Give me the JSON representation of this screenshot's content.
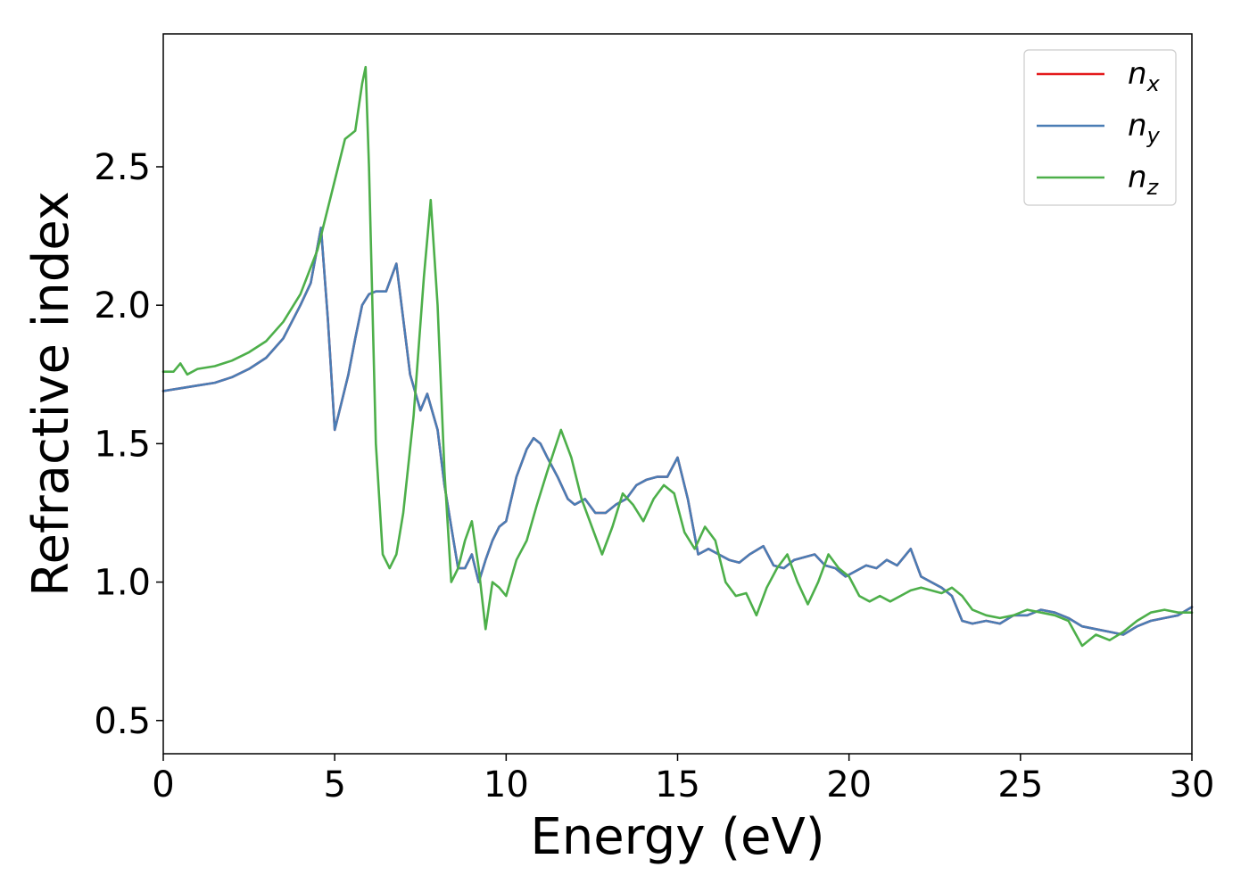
{
  "chart_data": {
    "type": "line",
    "xlabel": "Energy (eV)",
    "ylabel": "Refractive index",
    "xlim": [
      0,
      30
    ],
    "ylim": [
      0.38,
      2.98
    ],
    "xticks": [
      0,
      5,
      10,
      15,
      20,
      25,
      30
    ],
    "yticks": [
      0.5,
      1.0,
      1.5,
      2.0,
      2.5
    ],
    "xtick_labels": [
      "0",
      "5",
      "10",
      "15",
      "20",
      "25",
      "30"
    ],
    "ytick_labels": [
      "0.5",
      "1.0",
      "1.5",
      "2.0",
      "2.5"
    ],
    "grid": false,
    "legend_position": "top-right",
    "series": [
      {
        "name": "n",
        "sub": "x",
        "color": "#e41a1c",
        "x": [
          0,
          0.5,
          1,
          1.5,
          2,
          2.5,
          3,
          3.5,
          4,
          4.3,
          4.6,
          4.8,
          5,
          5.2,
          5.4,
          5.6,
          5.8,
          6,
          6.2,
          6.5,
          6.8,
          7,
          7.2,
          7.5,
          7.7,
          8,
          8.2,
          8.4,
          8.6,
          8.8,
          9,
          9.2,
          9.4,
          9.6,
          9.8,
          10,
          10.3,
          10.6,
          10.8,
          11,
          11.2,
          11.5,
          11.8,
          12,
          12.3,
          12.6,
          12.9,
          13.2,
          13.5,
          13.8,
          14.1,
          14.4,
          14.7,
          15,
          15.3,
          15.6,
          15.9,
          16.2,
          16.5,
          16.8,
          17.1,
          17.5,
          17.8,
          18.1,
          18.4,
          18.7,
          19,
          19.3,
          19.6,
          19.9,
          20.2,
          20.5,
          20.8,
          21.1,
          21.4,
          21.8,
          22.1,
          22.4,
          22.7,
          23,
          23.3,
          23.6,
          24,
          24.4,
          24.8,
          25.2,
          25.6,
          26,
          26.4,
          26.8,
          27.2,
          27.6,
          28,
          28.4,
          28.8,
          29.2,
          29.6,
          30
        ],
        "y": [
          1.69,
          1.7,
          1.71,
          1.72,
          1.74,
          1.77,
          1.81,
          1.88,
          2.0,
          2.08,
          2.28,
          1.95,
          1.55,
          1.65,
          1.75,
          1.88,
          2.0,
          2.04,
          2.05,
          2.05,
          2.15,
          1.95,
          1.75,
          1.62,
          1.68,
          1.55,
          1.35,
          1.2,
          1.05,
          1.05,
          1.1,
          1.0,
          1.08,
          1.15,
          1.2,
          1.22,
          1.38,
          1.48,
          1.52,
          1.5,
          1.45,
          1.38,
          1.3,
          1.28,
          1.3,
          1.25,
          1.25,
          1.28,
          1.3,
          1.35,
          1.37,
          1.38,
          1.38,
          1.45,
          1.3,
          1.1,
          1.12,
          1.1,
          1.08,
          1.07,
          1.1,
          1.13,
          1.06,
          1.05,
          1.08,
          1.09,
          1.1,
          1.06,
          1.05,
          1.02,
          1.04,
          1.06,
          1.05,
          1.08,
          1.06,
          1.12,
          1.02,
          1.0,
          0.98,
          0.95,
          0.86,
          0.85,
          0.86,
          0.85,
          0.88,
          0.88,
          0.9,
          0.89,
          0.87,
          0.84,
          0.83,
          0.82,
          0.81,
          0.84,
          0.86,
          0.87,
          0.88,
          0.91
        ]
      },
      {
        "name": "n",
        "sub": "y",
        "color": "#4a7db5",
        "x": [
          0,
          0.5,
          1,
          1.5,
          2,
          2.5,
          3,
          3.5,
          4,
          4.3,
          4.6,
          4.8,
          5,
          5.2,
          5.4,
          5.6,
          5.8,
          6,
          6.2,
          6.5,
          6.8,
          7,
          7.2,
          7.5,
          7.7,
          8,
          8.2,
          8.4,
          8.6,
          8.8,
          9,
          9.2,
          9.4,
          9.6,
          9.8,
          10,
          10.3,
          10.6,
          10.8,
          11,
          11.2,
          11.5,
          11.8,
          12,
          12.3,
          12.6,
          12.9,
          13.2,
          13.5,
          13.8,
          14.1,
          14.4,
          14.7,
          15,
          15.3,
          15.6,
          15.9,
          16.2,
          16.5,
          16.8,
          17.1,
          17.5,
          17.8,
          18.1,
          18.4,
          18.7,
          19,
          19.3,
          19.6,
          19.9,
          20.2,
          20.5,
          20.8,
          21.1,
          21.4,
          21.8,
          22.1,
          22.4,
          22.7,
          23,
          23.3,
          23.6,
          24,
          24.4,
          24.8,
          25.2,
          25.6,
          26,
          26.4,
          26.8,
          27.2,
          27.6,
          28,
          28.4,
          28.8,
          29.2,
          29.6,
          30
        ],
        "y": [
          1.69,
          1.7,
          1.71,
          1.72,
          1.74,
          1.77,
          1.81,
          1.88,
          2.0,
          2.08,
          2.28,
          1.95,
          1.55,
          1.65,
          1.75,
          1.88,
          2.0,
          2.04,
          2.05,
          2.05,
          2.15,
          1.95,
          1.75,
          1.62,
          1.68,
          1.55,
          1.35,
          1.2,
          1.05,
          1.05,
          1.1,
          1.0,
          1.08,
          1.15,
          1.2,
          1.22,
          1.38,
          1.48,
          1.52,
          1.5,
          1.45,
          1.38,
          1.3,
          1.28,
          1.3,
          1.25,
          1.25,
          1.28,
          1.3,
          1.35,
          1.37,
          1.38,
          1.38,
          1.45,
          1.3,
          1.1,
          1.12,
          1.1,
          1.08,
          1.07,
          1.1,
          1.13,
          1.06,
          1.05,
          1.08,
          1.09,
          1.1,
          1.06,
          1.05,
          1.02,
          1.04,
          1.06,
          1.05,
          1.08,
          1.06,
          1.12,
          1.02,
          1.0,
          0.98,
          0.95,
          0.86,
          0.85,
          0.86,
          0.85,
          0.88,
          0.88,
          0.9,
          0.89,
          0.87,
          0.84,
          0.83,
          0.82,
          0.81,
          0.84,
          0.86,
          0.87,
          0.88,
          0.91
        ]
      },
      {
        "name": "n",
        "sub": "z",
        "color": "#4daf4a",
        "x": [
          0,
          0.3,
          0.5,
          0.7,
          1,
          1.5,
          2,
          2.5,
          3,
          3.5,
          4,
          4.5,
          5,
          5.3,
          5.6,
          5.8,
          5.9,
          6,
          6.2,
          6.4,
          6.6,
          6.8,
          7,
          7.3,
          7.6,
          7.8,
          8,
          8.2,
          8.4,
          8.6,
          8.8,
          9,
          9.2,
          9.4,
          9.6,
          9.8,
          10,
          10.3,
          10.6,
          10.9,
          11.2,
          11.6,
          11.9,
          12.2,
          12.5,
          12.8,
          13.1,
          13.4,
          13.7,
          14,
          14.3,
          14.6,
          14.9,
          15.2,
          15.5,
          15.8,
          16.1,
          16.4,
          16.7,
          17,
          17.3,
          17.6,
          17.9,
          18.2,
          18.5,
          18.8,
          19.1,
          19.4,
          19.7,
          20,
          20.3,
          20.6,
          20.9,
          21.2,
          21.5,
          21.8,
          22.1,
          22.4,
          22.7,
          23,
          23.3,
          23.6,
          24,
          24.4,
          24.8,
          25.2,
          25.6,
          26,
          26.4,
          26.8,
          27.2,
          27.6,
          28,
          28.4,
          28.8,
          29.2,
          29.6,
          30
        ],
        "y": [
          1.76,
          1.76,
          1.79,
          1.75,
          1.77,
          1.78,
          1.8,
          1.83,
          1.87,
          1.94,
          2.04,
          2.2,
          2.45,
          2.6,
          2.63,
          2.8,
          2.86,
          2.5,
          1.5,
          1.1,
          1.05,
          1.1,
          1.25,
          1.6,
          2.1,
          2.38,
          2.0,
          1.4,
          1.0,
          1.05,
          1.15,
          1.22,
          1.05,
          0.83,
          1.0,
          0.98,
          0.95,
          1.08,
          1.15,
          1.28,
          1.4,
          1.55,
          1.45,
          1.3,
          1.2,
          1.1,
          1.2,
          1.32,
          1.28,
          1.22,
          1.3,
          1.35,
          1.32,
          1.18,
          1.12,
          1.2,
          1.15,
          1.0,
          0.95,
          0.96,
          0.88,
          0.98,
          1.05,
          1.1,
          1.0,
          0.92,
          1.0,
          1.1,
          1.05,
          1.02,
          0.95,
          0.93,
          0.95,
          0.93,
          0.95,
          0.97,
          0.98,
          0.97,
          0.96,
          0.98,
          0.95,
          0.9,
          0.88,
          0.87,
          0.88,
          0.9,
          0.89,
          0.88,
          0.86,
          0.77,
          0.81,
          0.79,
          0.82,
          0.86,
          0.89,
          0.9,
          0.89,
          0.89
        ]
      }
    ]
  }
}
